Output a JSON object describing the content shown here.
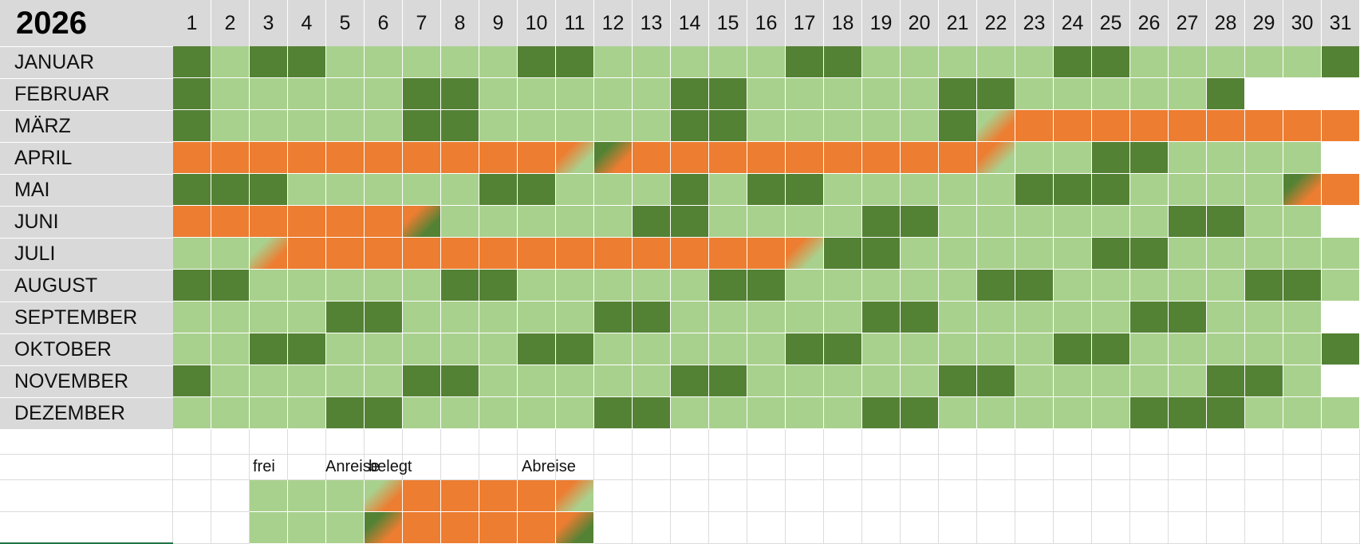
{
  "year": "2026",
  "days": [
    "1",
    "2",
    "3",
    "4",
    "5",
    "6",
    "7",
    "8",
    "9",
    "10",
    "11",
    "12",
    "13",
    "14",
    "15",
    "16",
    "17",
    "18",
    "19",
    "20",
    "21",
    "22",
    "23",
    "24",
    "25",
    "26",
    "27",
    "28",
    "29",
    "30",
    "31"
  ],
  "colors": {
    "frei": "#a9d18e",
    "wochenende": "#548235",
    "belegt": "#ed7d31",
    "leer": "#ffffff",
    "header": "#d9d9d9"
  },
  "legend_code": "F=frei (hellgrün), W=Wochenende (dunkelgrün), B=belegt (orange), A=Anreise an frei, a=Anreise an Wochenende, D=Abreise an frei, d=Abreise an Wochenende, X=leer",
  "months": [
    {
      "name": "JANUAR",
      "days": "WFWWFFFFFWWFFFFFWWFFFFFWWFFFFFW"
    },
    {
      "name": "FEBRUAR",
      "days": "WFFFFFWWFFFFFWWFFFFFWWFFFFFWXXX"
    },
    {
      "name": "MÄRZ",
      "days": "WFFFFFWWFFFFFWWFFFFFWABBBBBBBBB"
    },
    {
      "name": "APRIL",
      "days": "BBBBBBBBBBDaBBBBBBBBBDFFWWFFFFX"
    },
    {
      "name": "MAI",
      "days": "WWWFFFFFWWFFFWFWWFFFFFWWWFFFFaB"
    },
    {
      "name": "JUNI",
      "days": "BBBBBBdFFFFFWWFFFFWWFFFFFFWWFFX"
    },
    {
      "name": "JULI",
      "days": "FFABBBBBBBBBBBBBDWWFFFFFWWFFFFF"
    },
    {
      "name": "AUGUST",
      "days": "WWFFFFFWWFFFFFWWFFFFFWWFFFFFWWF"
    },
    {
      "name": "SEPTEMBER",
      "days": "FFFFWWFFFFFWWFFFFFWWFFFFFWWFFFX"
    },
    {
      "name": "OKTOBER",
      "days": "FFWWFFFFFWWFFFFFWWFFFFFWWFFFFFW"
    },
    {
      "name": "NOVEMBER",
      "days": "WFFFFFWWFFFFFWWFFFFFWWFFFFFWWFX"
    },
    {
      "name": "DEZEMBER",
      "days": "FFFFWWFFFFFWWFFFFFWWFFFFFWWWFFF"
    }
  ],
  "legend": {
    "frei_label": "frei",
    "anreise_label": "Anreise",
    "belegt_label": "belegt",
    "abreise_label": "Abreise",
    "row1": "FFFABBBBD",
    "row2": "FFFaBBBBd"
  }
}
